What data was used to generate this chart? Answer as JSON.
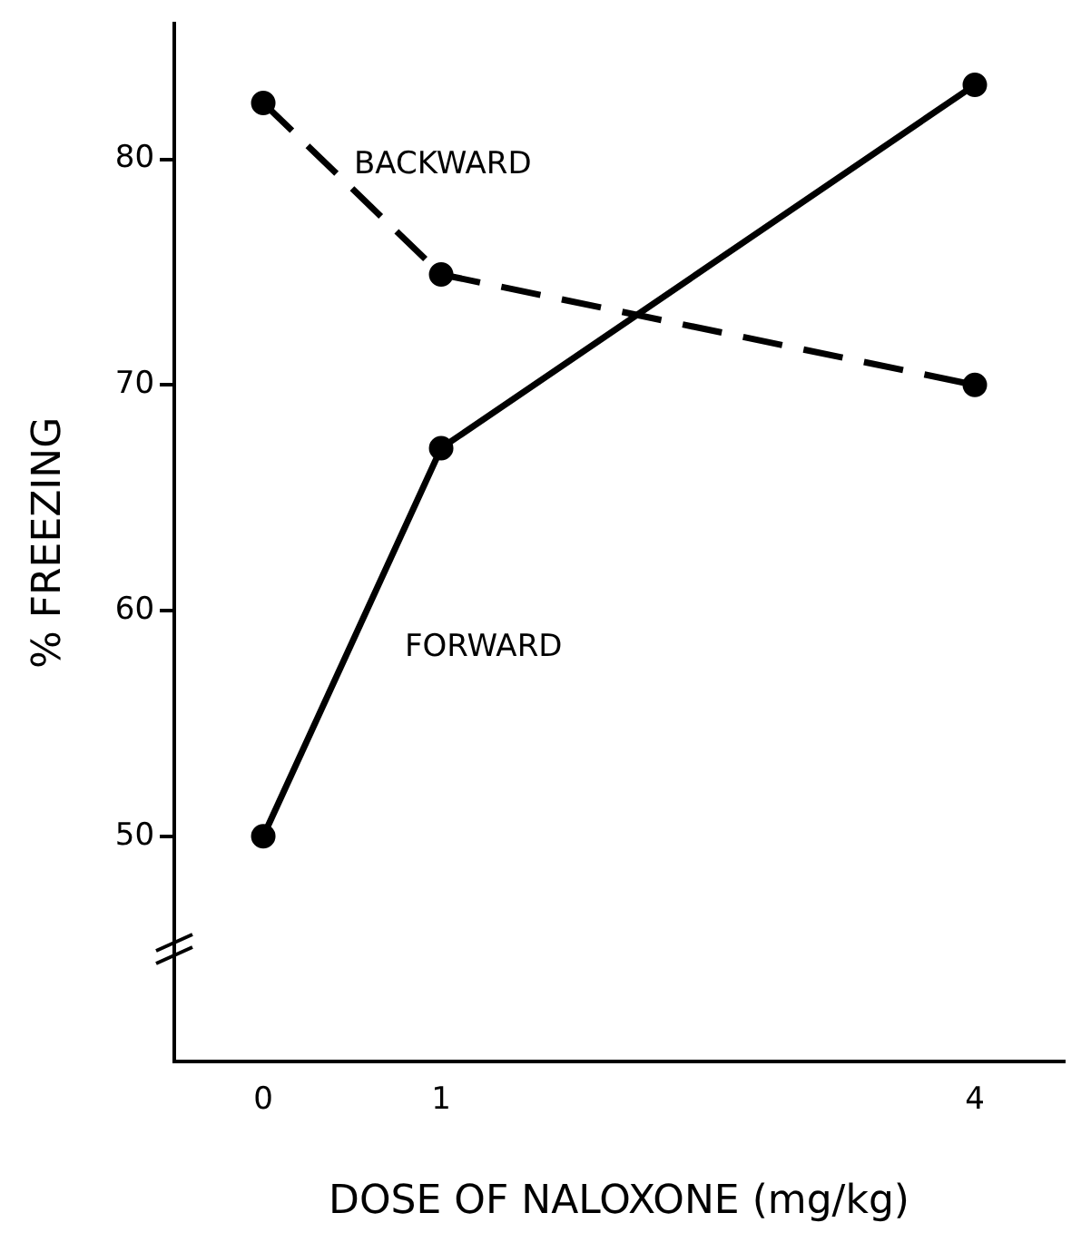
{
  "chart_data": {
    "type": "line",
    "xlabel": "DOSE OF NALOXONE (mg/kg)",
    "ylabel": "% FREEZING",
    "x": [
      0,
      1,
      4
    ],
    "series": [
      {
        "name": "BACKWARD",
        "color": "#000000",
        "values": [
          82.5,
          74.9,
          70
        ],
        "line_style": "dashed"
      },
      {
        "name": "FORWARD",
        "color": "#000000",
        "values": [
          50,
          67.2,
          83.3
        ],
        "line_style": "solid"
      }
    ],
    "xlim": [
      -0.5,
      4.5
    ],
    "xticks": [
      0,
      1,
      4
    ],
    "ylim": [
      40,
      86
    ],
    "yticks": [
      50,
      60,
      70,
      80
    ],
    "marker": "circle",
    "grid": false,
    "legend": false
  }
}
